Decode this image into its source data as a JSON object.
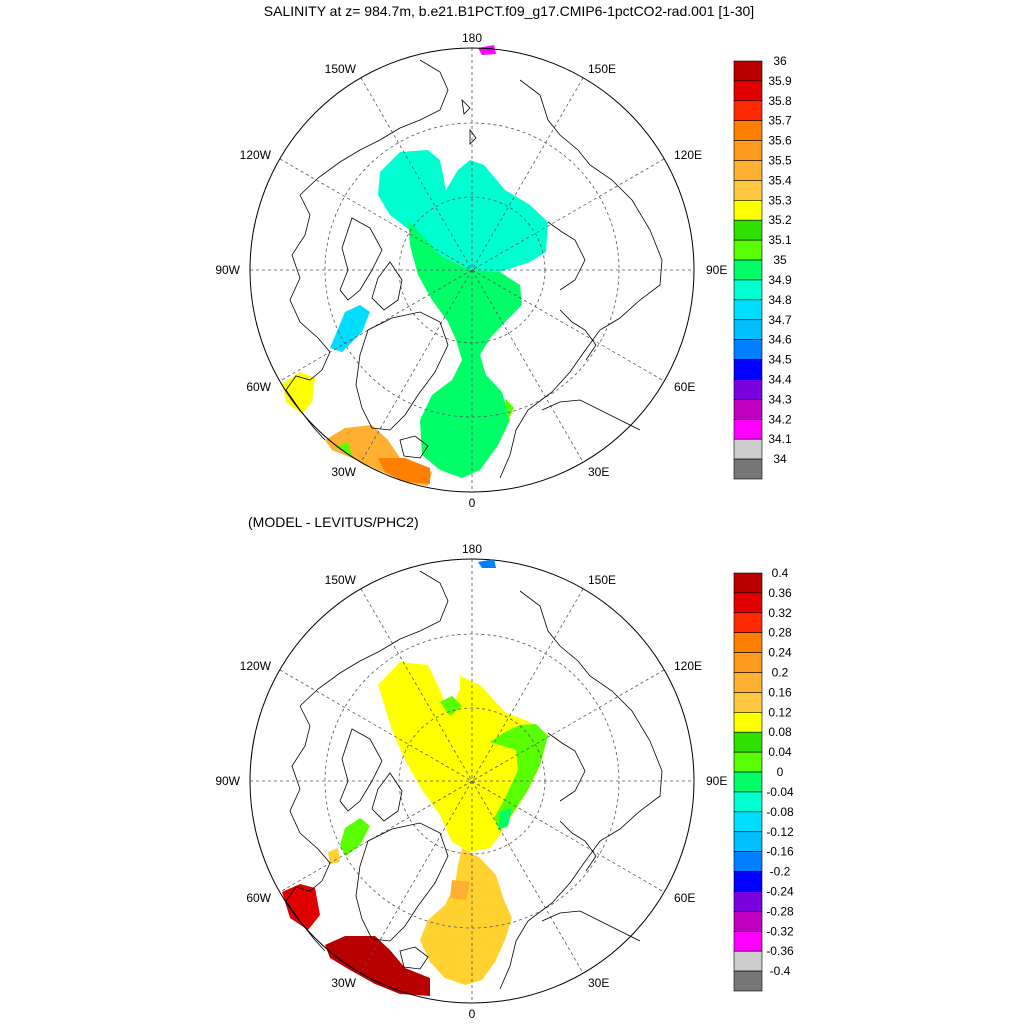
{
  "panels": [
    {
      "title": "SALINITY at z= 984.7m, b.e21.B1PCT.f09_g17.CMIP6-1pctCO2-rad.001 [1-30]",
      "lon_labels": {
        "n": "180",
        "ne": "150E",
        "ene": "120E",
        "e": "90E",
        "ese": "60E",
        "se": "30E",
        "s": "0",
        "sw": "30W",
        "wsw": "60W",
        "w": "90W",
        "wnw": "120W",
        "nw": "150W"
      },
      "colorbar": {
        "labels": [
          "36",
          "35.9",
          "35.8",
          "35.7",
          "35.6",
          "35.5",
          "35.4",
          "35.3",
          "35.2",
          "35.1",
          "35",
          "34.9",
          "34.8",
          "34.7",
          "34.6",
          "34.5",
          "34.4",
          "34.3",
          "34.2",
          "34.1",
          "34"
        ],
        "colors": [
          "#b80000",
          "#e00000",
          "#ff2a00",
          "#ff8000",
          "#ff9a20",
          "#ffb030",
          "#ffc840",
          "#ffff00",
          "#30e000",
          "#58ff00",
          "#00ff66",
          "#00ffd0",
          "#00ddff",
          "#00bfff",
          "#0080ff",
          "#0000ff",
          "#7a00e0",
          "#c000c0",
          "#ff00ff",
          "#cccccc",
          "#777777"
        ]
      }
    },
    {
      "title": "(MODEL - LEVITUS/PHC2)",
      "lon_labels": {
        "n": "180",
        "ne": "150E",
        "ene": "120E",
        "e": "90E",
        "ese": "60E",
        "se": "30E",
        "s": "0",
        "sw": "30W",
        "wsw": "60W",
        "w": "90W",
        "wnw": "120W",
        "nw": "150W"
      },
      "colorbar": {
        "labels": [
          "0.4",
          "0.36",
          "0.32",
          "0.28",
          "0.24",
          "0.2",
          "0.16",
          "0.12",
          "0.08",
          "0.04",
          "0",
          "-0.04",
          "-0.08",
          "-0.12",
          "-0.16",
          "-0.2",
          "-0.24",
          "-0.28",
          "-0.32",
          "-0.36",
          "-0.4"
        ],
        "colors": [
          "#b80000",
          "#e00000",
          "#ff2a00",
          "#ff8000",
          "#ff9a20",
          "#ffb030",
          "#ffc840",
          "#ffff00",
          "#30e000",
          "#58ff00",
          "#00ff66",
          "#00ffd0",
          "#00ddff",
          "#00bfff",
          "#0080ff",
          "#0000ff",
          "#7a00e0",
          "#c000c0",
          "#ff00ff",
          "#cccccc",
          "#777777"
        ]
      }
    }
  ]
}
